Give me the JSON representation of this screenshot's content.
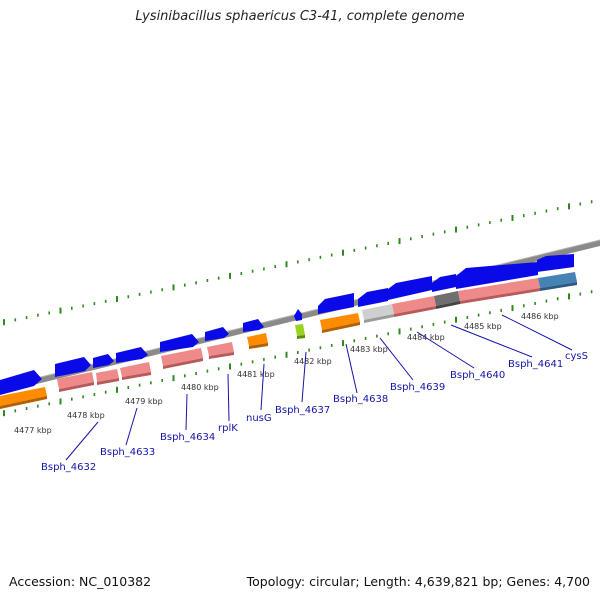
{
  "title": "Lysinibacillus sphaericus C3-41, complete genome",
  "footer": {
    "accession": "Accession: NC_010382",
    "summary": "Topology: circular; Length: 4,639,821 bp; Genes: 4,700"
  },
  "colors": {
    "backbone": "#8a8a8a",
    "tick": "#2e8a1e",
    "gene": "#0a0ae8",
    "salmon": "#ef8a8a",
    "orange": "#ff8c00",
    "lightgray": "#cfcfcf",
    "darkgray": "#6f6f6f",
    "steelblue": "#4682b4",
    "lime": "#9ad21e",
    "label": "#1414a8"
  },
  "kbp_labels": [
    "4477 kbp",
    "4478 kbp",
    "4479 kbp",
    "4480 kbp",
    "4481 kbp",
    "4482 kbp",
    "4483 kbp",
    "4484 kbp",
    "4485 kbp",
    "4486 kbp"
  ],
  "gene_labels": [
    "Bsph_4632",
    "Bsph_4633",
    "Bsph_4634",
    "rplK",
    "nusG",
    "Bsph_4637",
    "Bsph_4638",
    "Bsph_4639",
    "Bsph_4640",
    "Bsph_4641",
    "cysS"
  ]
}
